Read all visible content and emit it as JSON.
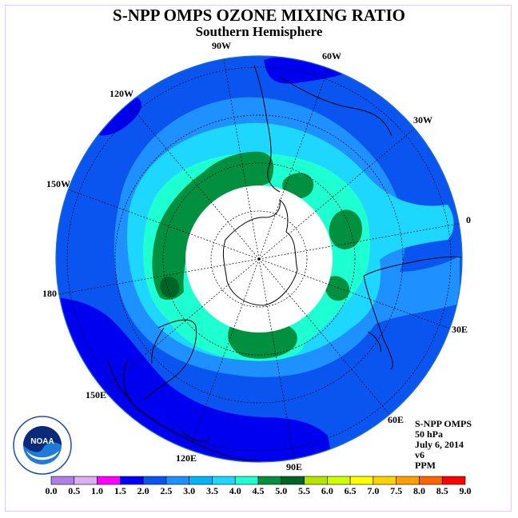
{
  "title": "S-NPP OMPS OZONE MIXING RATIO",
  "subtitle": "Southern Hemisphere",
  "longitudes": [
    {
      "label": "90W",
      "name": "lon-label-90w"
    },
    {
      "label": "60W",
      "name": "lon-label-60w"
    },
    {
      "label": "120W",
      "name": "lon-label-120w"
    },
    {
      "label": "30W",
      "name": "lon-label-30w"
    },
    {
      "label": "150W",
      "name": "lon-label-150w"
    },
    {
      "label": "0",
      "name": "lon-label-0"
    },
    {
      "label": "180",
      "name": "lon-label-180"
    },
    {
      "label": "30E",
      "name": "lon-label-30e"
    },
    {
      "label": "150E",
      "name": "lon-label-150e"
    },
    {
      "label": "60E",
      "name": "lon-label-60e"
    },
    {
      "label": "120E",
      "name": "lon-label-120e"
    },
    {
      "label": "90E",
      "name": "lon-label-90e"
    }
  ],
  "info": {
    "instrument": "S-NPP OMPS",
    "level": "50 hPa",
    "date": "July 6, 2014",
    "version": "v6",
    "units": "PPM"
  },
  "colorbar": {
    "ticks": [
      "0.0",
      "0.5",
      "1.0",
      "1.5",
      "2.0",
      "2.5",
      "3.0",
      "3.5",
      "4.0",
      "4.5",
      "5.0",
      "5.5",
      "6.0",
      "6.5",
      "7.0",
      "7.5",
      "8.0",
      "8.5",
      "9.0"
    ],
    "colors": [
      "#b07ee8",
      "#dcb0f0",
      "#ff00ff",
      "#0000ff",
      "#0a55f0",
      "#1e90ff",
      "#00b4ff",
      "#1ed7ff",
      "#1effd2",
      "#009040",
      "#006428",
      "#b4e400",
      "#d2ff00",
      "#ffff00",
      "#ffd200",
      "#ffa000",
      "#ff6400",
      "#ff0000",
      "#a05a3c"
    ]
  },
  "logo": {
    "text": "NOAA"
  },
  "map_colors": {
    "level_2_0": "#0000f0",
    "level_2_5": "#0a55f0",
    "level_3_0": "#1e90ff",
    "level_3_5": "#1ed7ff",
    "level_4_0": "#1effd2",
    "level_4_5": "#009040",
    "level_5_0": "#006428",
    "polar_night": "#ffffff",
    "coast": "#000000"
  }
}
